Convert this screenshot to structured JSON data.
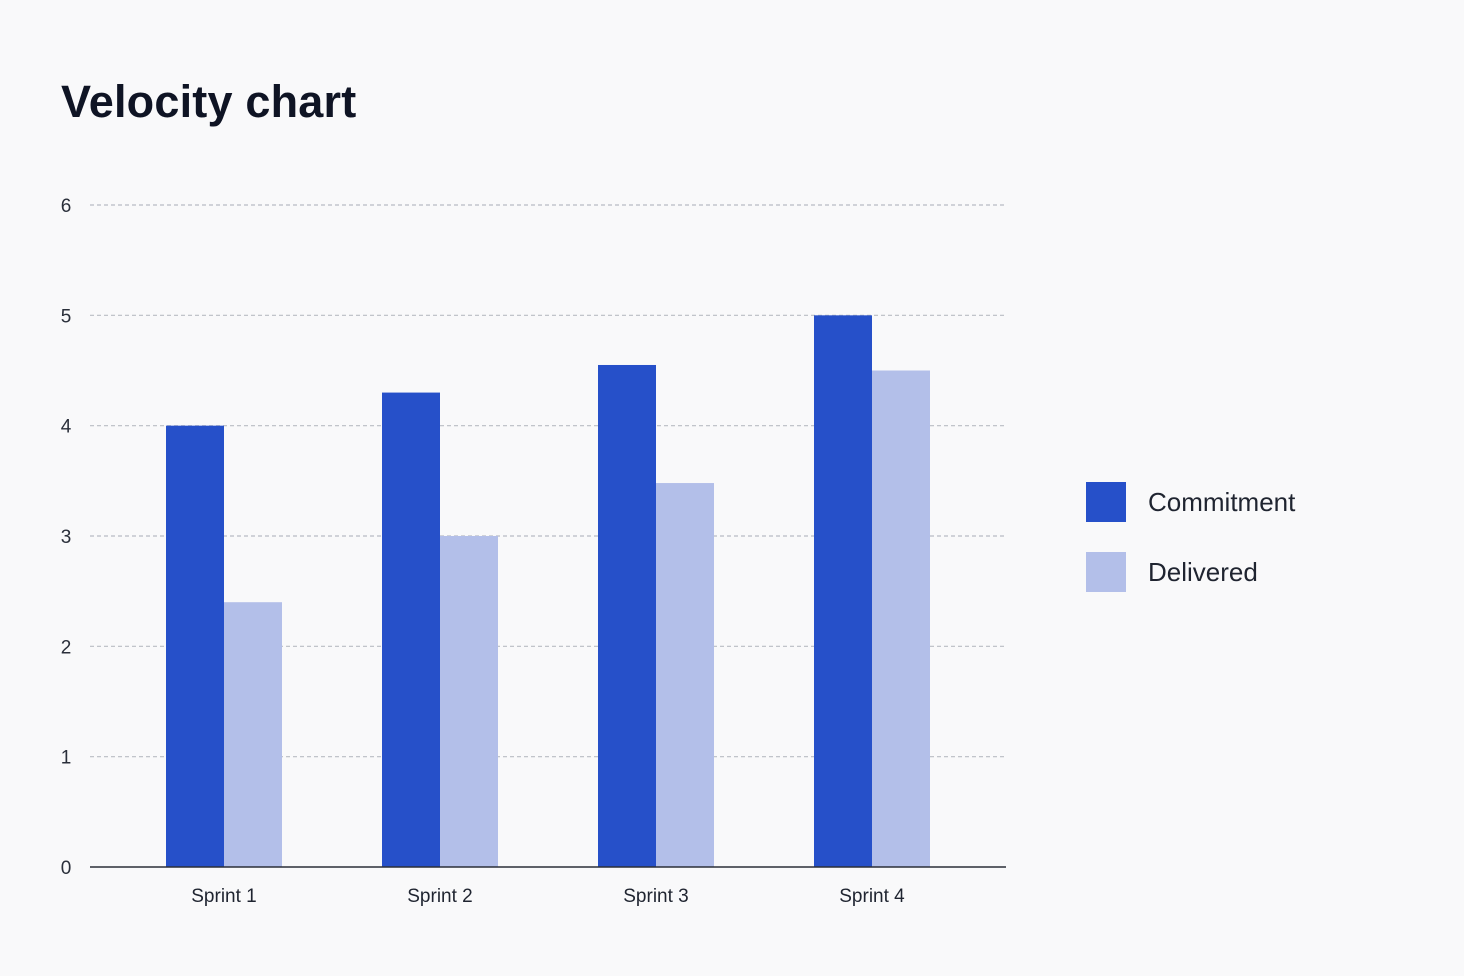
{
  "page": {
    "title": "Velocity chart"
  },
  "chart_data": {
    "type": "bar",
    "title": "Velocity chart",
    "xlabel": "",
    "ylabel": "",
    "categories": [
      "Sprint 1",
      "Sprint 2",
      "Sprint 3",
      "Sprint 4"
    ],
    "series": [
      {
        "name": "Commitment",
        "values": [
          4,
          4.3,
          4.55,
          5
        ],
        "color": "#2650c9"
      },
      {
        "name": "Delivered",
        "values": [
          2.4,
          3,
          3.48,
          4.5
        ],
        "color": "#b3bfe9"
      }
    ],
    "ylim": [
      0,
      6
    ],
    "yticks": [
      "0",
      "1",
      "2",
      "3",
      "4",
      "5",
      "6"
    ],
    "grid": true,
    "legend": "right"
  }
}
